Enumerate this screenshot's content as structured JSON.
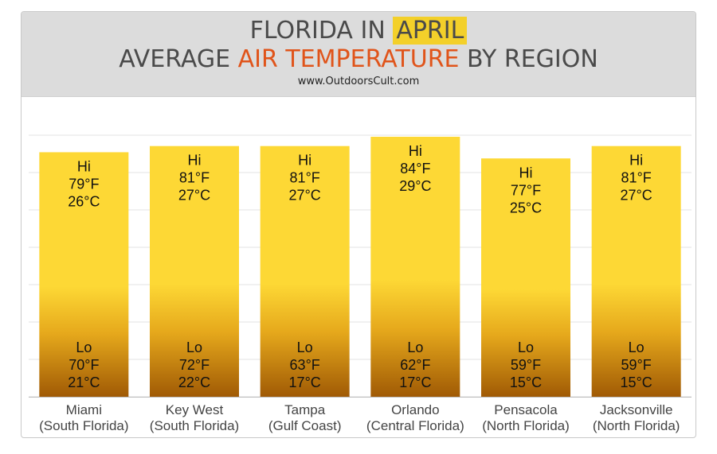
{
  "header": {
    "title_line1_prefix": "FLORIDA IN ",
    "title_line1_highlight": "APRIL",
    "title_line2_prefix": "AVERAGE ",
    "title_line2_highlight": "AIR TEMPERATURE",
    "title_line2_suffix": " BY REGION",
    "website": "www.OutdoorsCult.com"
  },
  "colors": {
    "bar_top": "#fdd835",
    "bar_bottom": "#a05a05",
    "highlight_bg": "#f3d02a",
    "highlight_text": "#e0541a",
    "header_bg": "#dcdcdc"
  },
  "chart_data": {
    "type": "bar",
    "categories": [
      "Miami",
      "Key West",
      "Tampa",
      "Orlando",
      "Pensacola",
      "Jacksonville"
    ],
    "subcategories": [
      "(South Florida)",
      "(South Florida)",
      "(Gulf Coast)",
      "(Central Florida)",
      "(North Florida)",
      "(North Florida)"
    ],
    "hi_label": "Hi",
    "lo_label": "Lo",
    "series": [
      {
        "name": "Hi",
        "values_f": [
          79,
          81,
          81,
          84,
          77,
          81
        ],
        "values_c": [
          26,
          27,
          27,
          29,
          25,
          27
        ]
      },
      {
        "name": "Lo",
        "values_f": [
          70,
          72,
          63,
          62,
          59,
          59
        ],
        "values_c": [
          21,
          22,
          17,
          17,
          15,
          15
        ]
      }
    ],
    "grid": true
  }
}
